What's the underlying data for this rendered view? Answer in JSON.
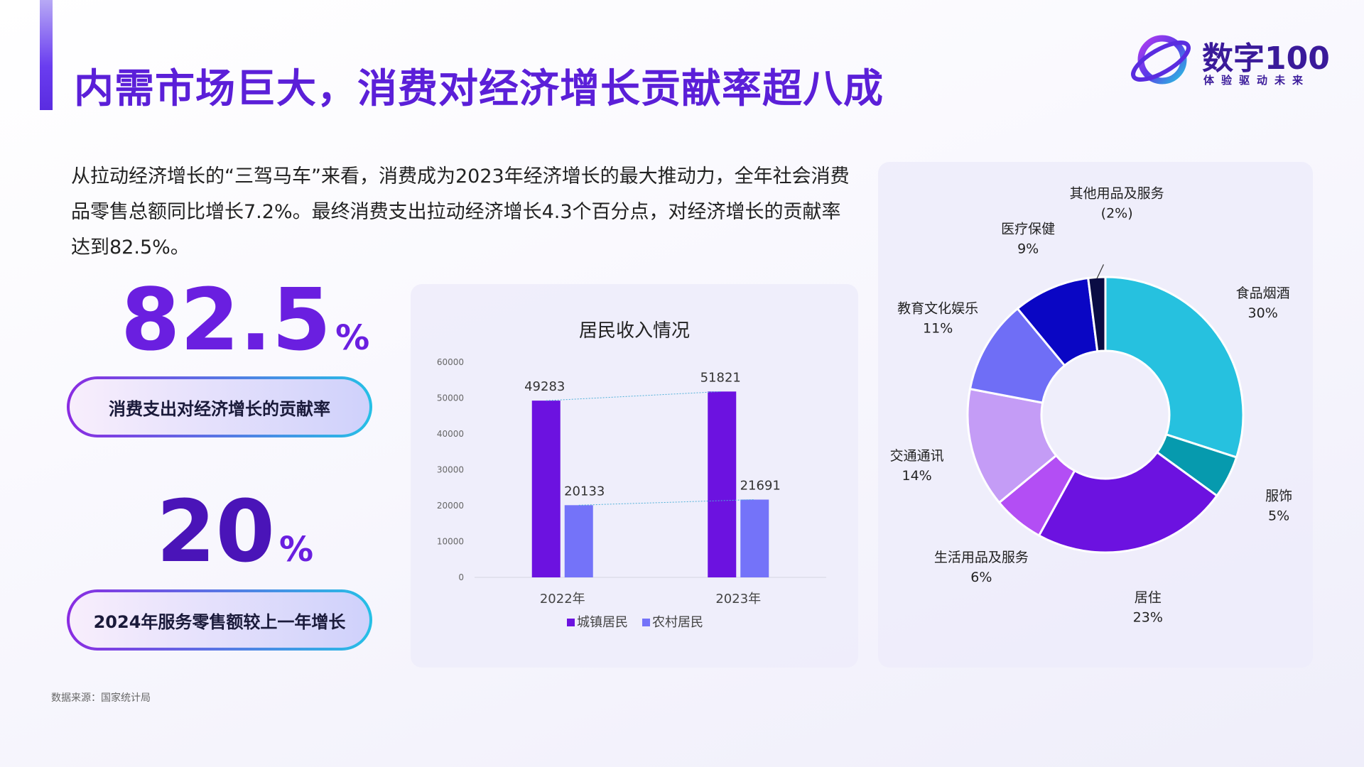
{
  "title": "内需市场巨大，消费对经济增长贡献率超八成",
  "logo": {
    "name": "数字100",
    "tagline": "体验驱动未来"
  },
  "intro": "从拉动经济增长的“三驾马车”来看，消费成为2023年经济增长的最大推动力，全年社会消费品零售总额同比增长7.2%。最终消费支出拉动经济增长4.3个百分点，对经济增长的贡献率达到82.5%。",
  "stats": [
    {
      "value": "82.5",
      "unit": "%",
      "label": "消费支出对经济增长的贡献率"
    },
    {
      "value": "20",
      "unit": "%",
      "label": "2024年服务零售额较上一年增长"
    }
  ],
  "source": "数据来源：国家统计局",
  "colors": {
    "accent": "#5b1fd8",
    "urban": "#6c12e0",
    "rural": "#7473f9"
  },
  "chart_data": [
    {
      "type": "bar",
      "title": "居民收入情况",
      "categories": [
        "2022年",
        "2023年"
      ],
      "series": [
        {
          "name": "城镇居民",
          "values": [
            49283,
            51821
          ],
          "color": "#6c12e0"
        },
        {
          "name": "农村居民",
          "values": [
            20133,
            21691
          ],
          "color": "#7473f9"
        }
      ],
      "yticks": [
        "0",
        "10000",
        "20000",
        "30000",
        "40000",
        "50000",
        "60000"
      ],
      "ylim": [
        0,
        60000
      ],
      "grid": false,
      "legend": "bottom"
    },
    {
      "type": "pie",
      "donut": true,
      "slices": [
        {
          "label": "食品烟酒",
          "pct_label": "30%",
          "value": 30,
          "color": "#26c1df"
        },
        {
          "label": "服饰",
          "pct_label": "5%",
          "value": 5,
          "color": "#069aae"
        },
        {
          "label": "居住",
          "pct_label": "23%",
          "value": 23,
          "color": "#6c12e0"
        },
        {
          "label": "生活用品及服务",
          "pct_label": "6%",
          "value": 6,
          "color": "#b34ef4"
        },
        {
          "label": "交通通讯",
          "pct_label": "14%",
          "value": 14,
          "color": "#c49cf6"
        },
        {
          "label": "教育文化娱乐",
          "pct_label": "11%",
          "value": 11,
          "color": "#6f6ef6"
        },
        {
          "label": "医疗保健",
          "pct_label": "9%",
          "value": 9,
          "color": "#0a06c4"
        },
        {
          "label": "其他用品及服务",
          "pct_label": "(2%)",
          "value": 2,
          "color": "#0a0c44"
        }
      ]
    }
  ]
}
